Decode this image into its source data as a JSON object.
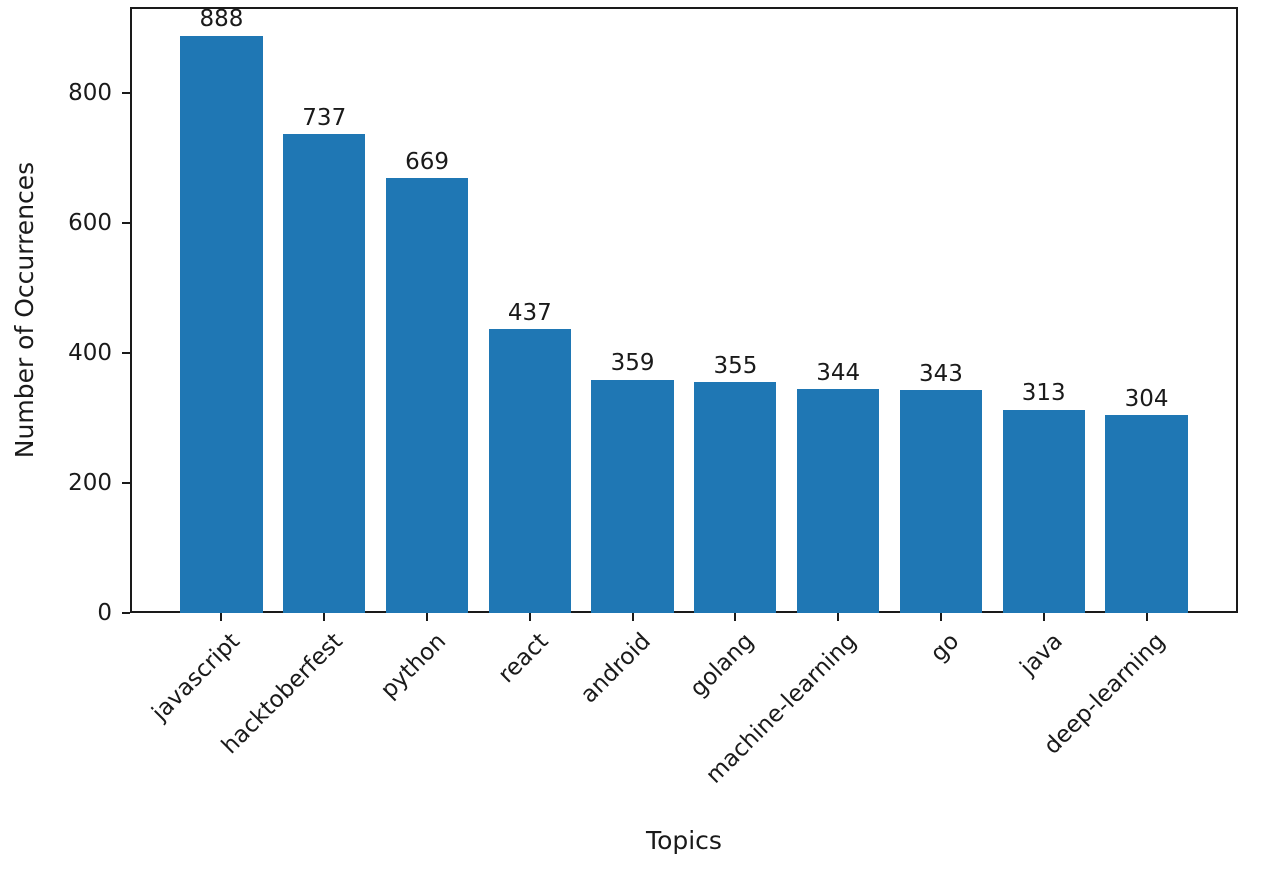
{
  "chart_data": {
    "type": "bar",
    "title": "",
    "xlabel": "Topics",
    "ylabel": "Number of Occurrences",
    "categories": [
      "javascript",
      "hacktoberfest",
      "python",
      "react",
      "android",
      "golang",
      "machine-learning",
      "go",
      "java",
      "deep-learning"
    ],
    "values": [
      888,
      737,
      669,
      437,
      359,
      355,
      344,
      343,
      313,
      304
    ],
    "bar_labels": [
      "888",
      "737",
      "669",
      "437",
      "359",
      "355",
      "344",
      "343",
      "313",
      "304"
    ],
    "yticks": [
      0,
      200,
      400,
      600,
      800
    ],
    "ylim": [
      0,
      932.4
    ],
    "bar_color": "#1f77b4",
    "axis_color": "#1a1a1a",
    "xtick_rotation": 45,
    "grid": false,
    "legend": null,
    "value_labels_shown": true
  }
}
